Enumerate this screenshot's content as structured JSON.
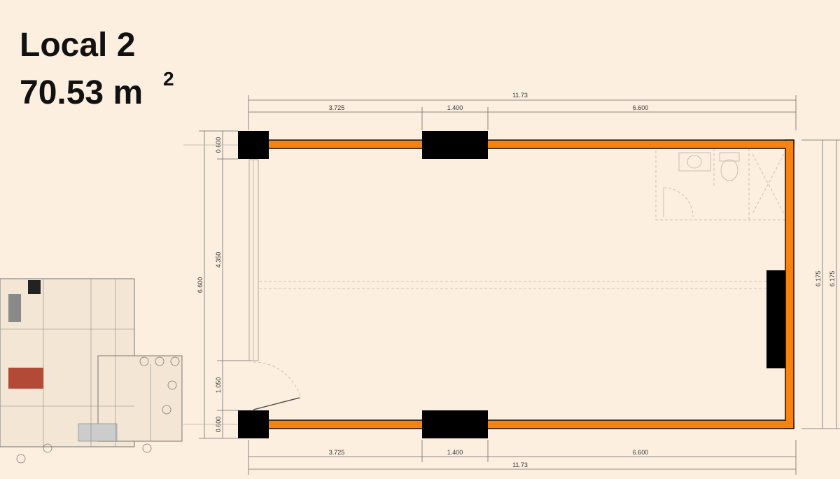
{
  "title": "Local 2",
  "area": {
    "value": "70.53 m",
    "exponent": "2"
  },
  "dimensions": {
    "top": {
      "total": "11.73",
      "segments": [
        "3.725",
        "1.400",
        "6.600"
      ]
    },
    "bottom": {
      "total": "11.73",
      "segments": [
        "3.725",
        "1.400",
        "6.600"
      ]
    },
    "left": {
      "total": "6.600",
      "segments": [
        "0.600",
        "4.350",
        "1.050",
        "0.600"
      ]
    },
    "right": [
      "6.175",
      "6.175"
    ]
  }
}
